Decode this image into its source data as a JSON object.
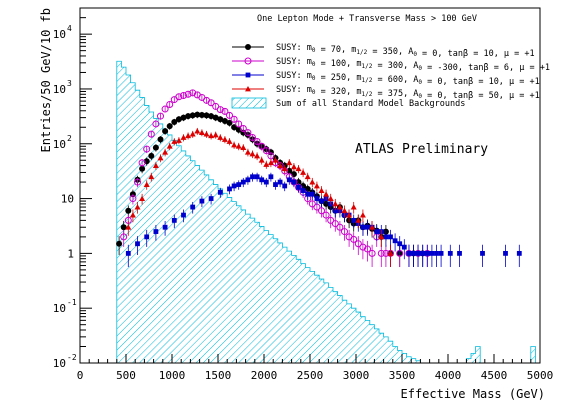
{
  "chart_data": {
    "type": "scatter",
    "title": "One Lepton Mode + Transverse Mass > 100 GeV",
    "annotation": "ATLAS Preliminary",
    "xlabel": "Effective Mass (GeV)",
    "ylabel": "Entries/50 GeV/10 fb",
    "y_scale": "log",
    "xlim": [
      0,
      5000
    ],
    "ylim": [
      0.01,
      30000
    ],
    "x_ticks": [
      {
        "v": 0,
        "label": "0"
      },
      {
        "v": 500,
        "label": "500"
      },
      {
        "v": 1000,
        "label": "1000"
      },
      {
        "v": 1500,
        "label": "1500"
      },
      {
        "v": 2000,
        "label": "2000"
      },
      {
        "v": 2500,
        "label": "2500"
      },
      {
        "v": 3000,
        "label": "3000"
      },
      {
        "v": 3500,
        "label": "3500"
      },
      {
        "v": 4000,
        "label": "4000"
      },
      {
        "v": 4500,
        "label": "4500"
      },
      {
        "v": 5000,
        "label": "5000"
      }
    ],
    "y_ticks": [
      {
        "v": 0.01,
        "base": "10",
        "exp": "-2"
      },
      {
        "v": 0.1,
        "base": "10",
        "exp": "-1"
      },
      {
        "v": 1,
        "base": "1",
        "exp": ""
      },
      {
        "v": 10,
        "base": "10",
        "exp": ""
      },
      {
        "v": 100,
        "base": "10",
        "exp": "2"
      },
      {
        "v": 1000,
        "base": "10",
        "exp": "3"
      },
      {
        "v": 10000,
        "base": "10",
        "exp": "4"
      }
    ],
    "legend_position": "top-right",
    "series": [
      {
        "name": "SUSY: m0 = 70, m1/2 = 350, A0 = 0, tanβ = 10, μ = +1",
        "color": "#000000",
        "marker": "filled-circle",
        "x": [
          425,
          475,
          525,
          575,
          625,
          675,
          725,
          775,
          825,
          875,
          925,
          975,
          1025,
          1075,
          1125,
          1175,
          1225,
          1275,
          1325,
          1375,
          1425,
          1475,
          1525,
          1575,
          1625,
          1675,
          1725,
          1775,
          1825,
          1875,
          1925,
          1975,
          2025,
          2075,
          2125,
          2175,
          2225,
          2275,
          2325,
          2375,
          2425,
          2475,
          2525,
          2575,
          2625,
          2675,
          2725,
          2775,
          2825,
          2875,
          2925,
          2975,
          3025,
          3075,
          3125,
          3175,
          3225,
          3275,
          3325,
          3375,
          3475,
          3575,
          3625,
          3675,
          3725
        ],
        "y": [
          1.5,
          3,
          6,
          12,
          22,
          35,
          48,
          60,
          85,
          120,
          170,
          210,
          250,
          280,
          300,
          320,
          330,
          340,
          335,
          330,
          320,
          300,
          280,
          260,
          240,
          200,
          180,
          160,
          145,
          120,
          100,
          90,
          80,
          70,
          55,
          45,
          40,
          32,
          28,
          20,
          17,
          15,
          13,
          11,
          9,
          8,
          7,
          6,
          7,
          5,
          4,
          3.5,
          4,
          3,
          3.2,
          2.8,
          2.6,
          2,
          2.5,
          1,
          1,
          1,
          1,
          1,
          1
        ]
      },
      {
        "name": "SUSY: m0 = 100, m1/2 = 300, A0 = -300, tanβ = 6, μ = +1",
        "color": "#cc00cc",
        "marker": "open-circle",
        "x": [
          475,
          525,
          575,
          625,
          675,
          725,
          775,
          825,
          875,
          925,
          975,
          1025,
          1075,
          1125,
          1175,
          1225,
          1275,
          1325,
          1375,
          1425,
          1475,
          1525,
          1575,
          1625,
          1675,
          1725,
          1775,
          1825,
          1875,
          1925,
          1975,
          2025,
          2075,
          2125,
          2175,
          2225,
          2275,
          2325,
          2375,
          2425,
          2475,
          2525,
          2575,
          2625,
          2675,
          2725,
          2775,
          2825,
          2875,
          2925,
          2975,
          3025,
          3075,
          3125,
          3175,
          3225,
          3275,
          3325,
          3375,
          3475,
          3575,
          3675,
          3775
        ],
        "y": [
          2,
          4,
          10,
          20,
          45,
          80,
          150,
          230,
          320,
          430,
          520,
          640,
          720,
          760,
          800,
          850,
          780,
          700,
          620,
          560,
          480,
          420,
          390,
          330,
          280,
          230,
          190,
          160,
          130,
          110,
          90,
          75,
          60,
          45,
          40,
          32,
          25,
          20,
          16,
          13,
          10,
          8,
          7,
          6,
          5,
          4,
          3.5,
          3,
          2.5,
          2,
          1.8,
          1.5,
          1.3,
          1.2,
          1,
          2,
          1,
          1,
          1,
          1,
          1,
          1,
          1
        ]
      },
      {
        "name": "SUSY: m0 = 250, m1/2 = 600, A0 = 0, tanβ = 10, μ = +1",
        "color": "#0000cc",
        "marker": "filled-square",
        "x": [
          525,
          625,
          725,
          825,
          925,
          1025,
          1125,
          1225,
          1325,
          1425,
          1525,
          1625,
          1675,
          1725,
          1775,
          1825,
          1875,
          1925,
          1975,
          2025,
          2075,
          2125,
          2175,
          2225,
          2275,
          2325,
          2375,
          2425,
          2475,
          2525,
          2575,
          2625,
          2675,
          2725,
          2775,
          2825,
          2875,
          2925,
          2975,
          3025,
          3075,
          3125,
          3175,
          3225,
          3275,
          3325,
          3375,
          3425,
          3475,
          3525,
          3575,
          3625,
          3675,
          3725,
          3775,
          3825,
          3875,
          3925,
          4025,
          4125,
          4375,
          4625,
          4775
        ],
        "y": [
          1,
          1.5,
          2,
          2.5,
          3,
          4,
          5,
          7,
          9,
          10,
          13,
          15,
          17,
          18,
          20,
          22,
          25,
          25,
          22,
          20,
          25,
          18,
          20,
          17,
          22,
          20,
          16,
          14,
          12,
          12,
          10,
          9,
          10,
          8,
          6,
          6,
          5,
          5,
          4,
          3.5,
          3,
          3,
          3,
          2.5,
          2.5,
          2,
          2,
          1.7,
          1.5,
          1.3,
          1,
          1,
          1,
          1,
          1,
          1,
          1,
          1,
          1,
          1,
          1,
          1,
          1
        ]
      },
      {
        "name": "SUSY: m0 = 320, m1/2 = 375, A0 = 0, tanβ = 50, μ = +1",
        "color": "#dd0000",
        "marker": "filled-triangle",
        "x": [
          525,
          575,
          625,
          675,
          725,
          775,
          825,
          875,
          925,
          975,
          1025,
          1075,
          1125,
          1175,
          1225,
          1275,
          1325,
          1375,
          1425,
          1475,
          1525,
          1575,
          1625,
          1675,
          1725,
          1775,
          1825,
          1875,
          1925,
          1975,
          2025,
          2075,
          2125,
          2175,
          2225,
          2275,
          2325,
          2375,
          2425,
          2475,
          2525,
          2575,
          2625,
          2675,
          2725,
          2775,
          2825,
          2875,
          2925,
          2975,
          3025,
          3075,
          3175,
          3275,
          3375
        ],
        "y": [
          3,
          5,
          7,
          10,
          18,
          25,
          40,
          55,
          70,
          90,
          110,
          115,
          130,
          140,
          150,
          170,
          160,
          150,
          140,
          145,
          130,
          120,
          110,
          95,
          90,
          85,
          70,
          65,
          60,
          50,
          42,
          45,
          50,
          40,
          35,
          45,
          38,
          35,
          30,
          25,
          20,
          17,
          14,
          12,
          10,
          8,
          7,
          6,
          5,
          7,
          4,
          5,
          3,
          2,
          1
        ]
      }
    ],
    "background": {
      "name": "Sum of all Standard Model Backgrounds",
      "color": "#00bbdd",
      "bin_width": 50,
      "edges_start": 400,
      "values": [
        3200,
        2500,
        1800,
        1300,
        950,
        700,
        500,
        380,
        290,
        230,
        180,
        145,
        115,
        92,
        74,
        60,
        49,
        40,
        33,
        27,
        22,
        18,
        15,
        12.5,
        10.5,
        8.8,
        7.4,
        6.2,
        5.2,
        4.4,
        3.7,
        3.1,
        2.6,
        2.2,
        1.85,
        1.55,
        1.3,
        1.1,
        0.92,
        0.78,
        0.65,
        0.55,
        0.47,
        0.4,
        0.34,
        0.29,
        0.24,
        0.2,
        0.17,
        0.14,
        0.12,
        0.1,
        0.085,
        0.07,
        0.06,
        0.05,
        0.042,
        0.035,
        0.03,
        0.025,
        0.02,
        0.017,
        0.015,
        0.013,
        0.012,
        0.011,
        0.01,
        0.01,
        0.01,
        0.01,
        0.01,
        0.01,
        0.01,
        0.01,
        0.01,
        0.01,
        0.012,
        0.015,
        0.02,
        0.01,
        0.01,
        0.01,
        0.01,
        0.01,
        0.01,
        0.01,
        0.01,
        0.01,
        0.01,
        0.01,
        0.02,
        0.01
      ]
    },
    "legend": [
      {
        "label": "SUSY: m",
        "sub1": "0",
        "mid1": " = 70, m",
        "sub2": "1/2",
        "mid2": " = 350, A",
        "sub3": "0",
        "tail": " = 0, tanβ = 10, μ = +1"
      },
      {
        "label": "SUSY: m",
        "sub1": "0",
        "mid1": " = 100, m",
        "sub2": "1/2",
        "mid2": " = 300, A",
        "sub3": "0",
        "tail": " = -300, tanβ = 6, μ = +1"
      },
      {
        "label": "SUSY: m",
        "sub1": "0",
        "mid1": " = 250, m",
        "sub2": "1/2",
        "mid2": " = 600, A",
        "sub3": "0",
        "tail": " = 0, tanβ = 10, μ = +1"
      },
      {
        "label": "SUSY: m",
        "sub1": "0",
        "mid1": " = 320, m",
        "sub2": "1/2",
        "mid2": " = 375, A",
        "sub3": "0",
        "tail": " = 0, tanβ = 50, μ = +1"
      }
    ],
    "legend_bg_label": "Sum of all Standard Model Backgrounds"
  }
}
